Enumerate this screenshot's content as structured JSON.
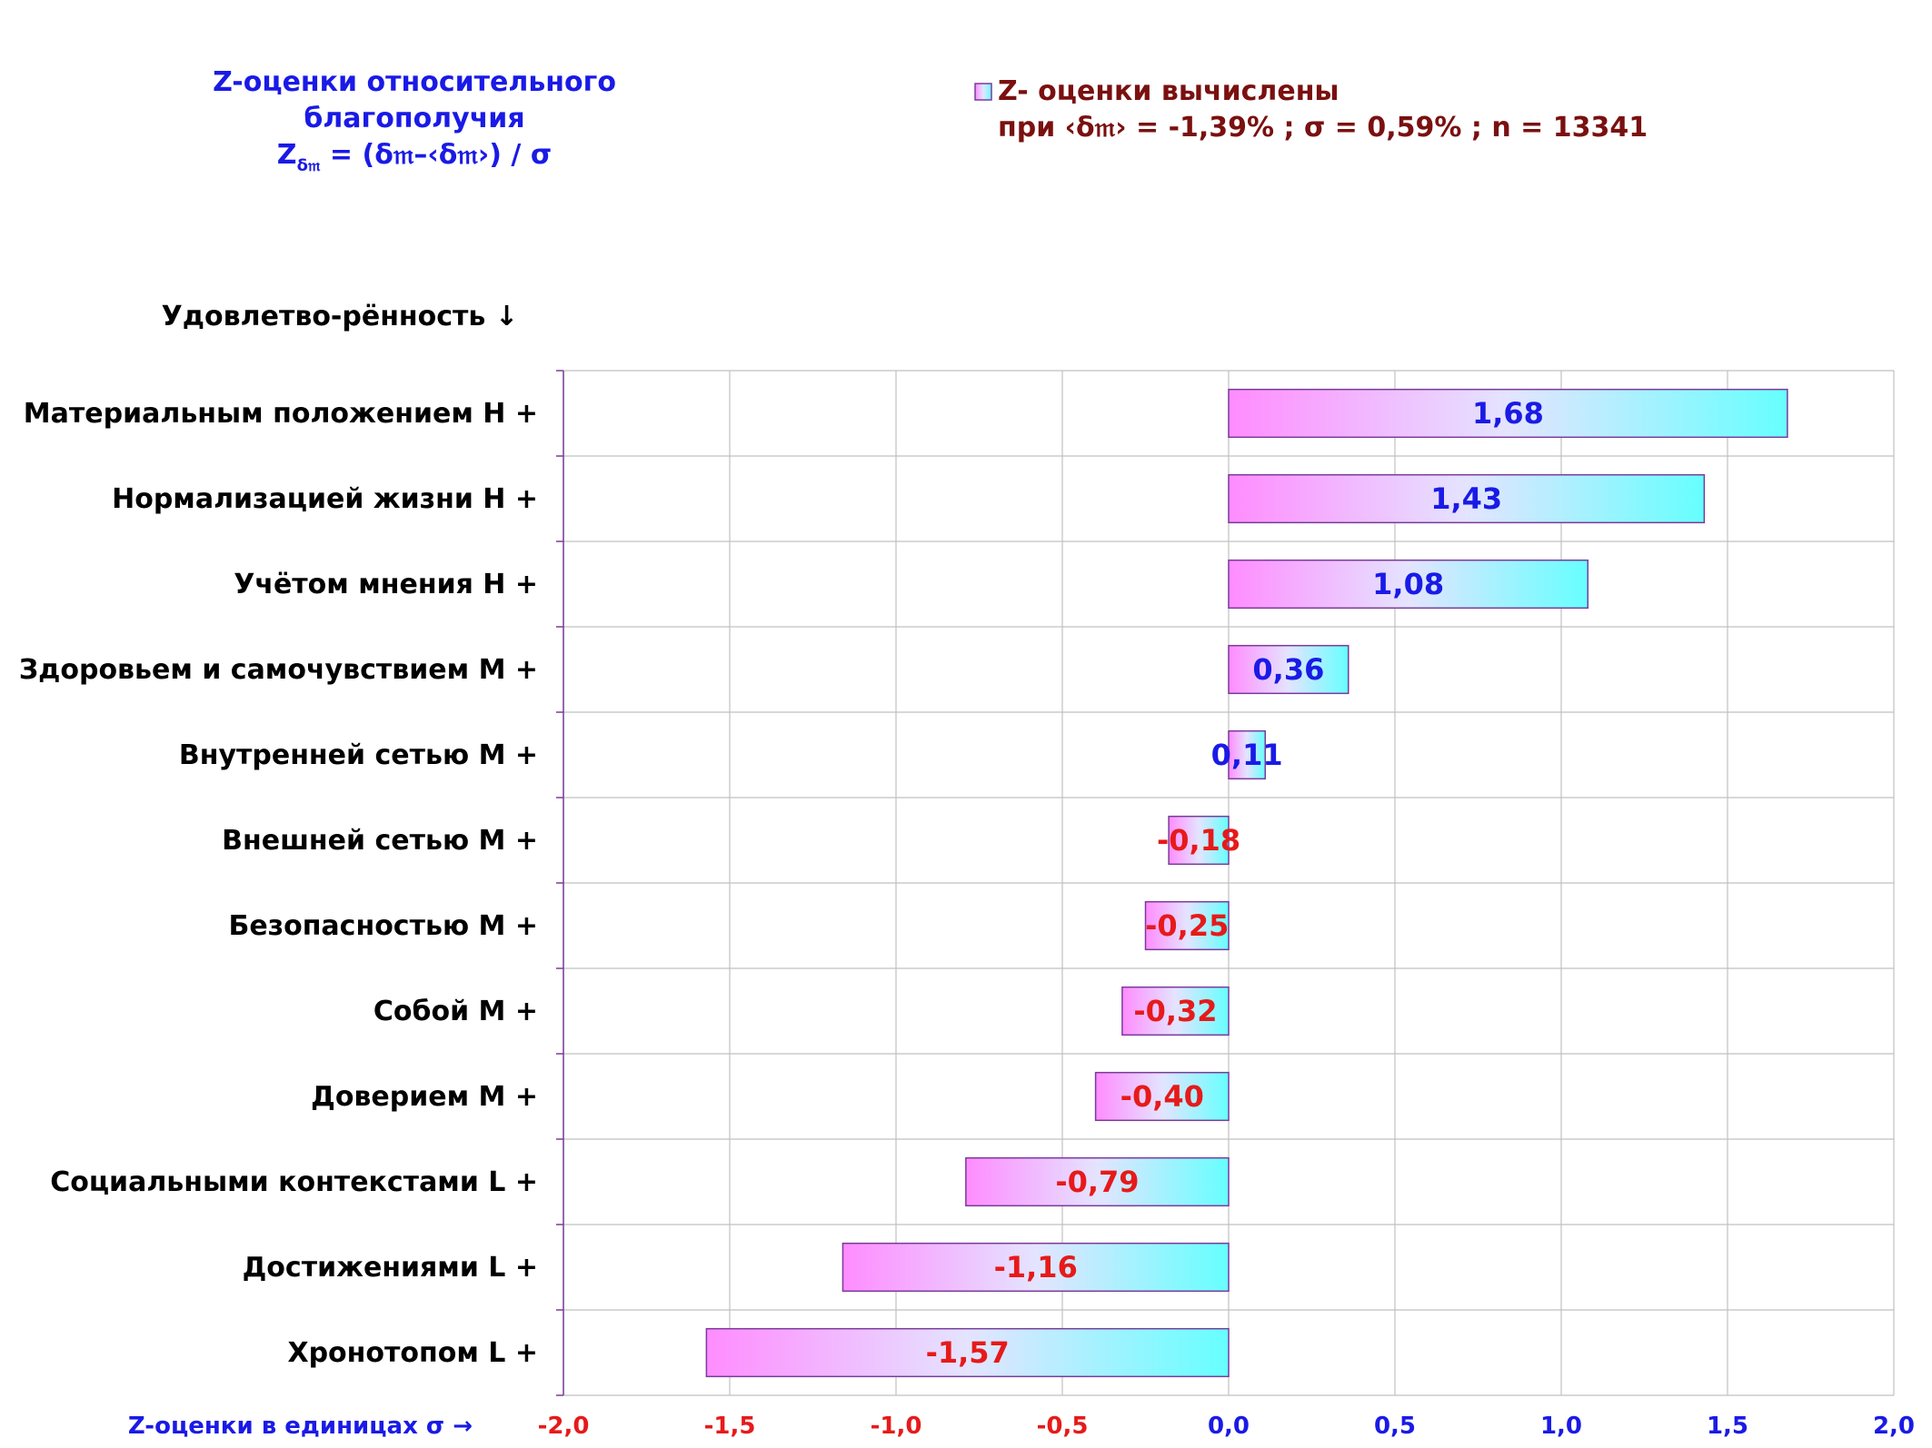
{
  "title": {
    "line1": "Z-оценки  относительного",
    "line2": "благополучия",
    "formula_lhs": "Z",
    "formula_sub": "δ𝔪",
    "formula_rhs": " = (δ𝔪–‹δ𝔪›)  / σ"
  },
  "legend": {
    "label": "Z- оценки вычислены",
    "note": "при ‹δ𝔪› = -1,39% ; σ = 0,59% ; n = 13341"
  },
  "chart_data": {
    "type": "bar",
    "orientation": "horizontal",
    "y_header": "Удовлетво-рённость ↓",
    "xlabel": "Z-оценки в единицах σ →",
    "xlim": [
      -2.0,
      2.0
    ],
    "xticks": [
      -2.0,
      -1.5,
      -1.0,
      -0.5,
      0.0,
      0.5,
      1.0,
      1.5,
      2.0
    ],
    "xtick_labels": [
      "-2,0",
      "-1,5",
      "-1,0",
      "-0,5",
      "0,0",
      "0,5",
      "1,0",
      "1,5",
      "2,0"
    ],
    "grid": true,
    "categories": [
      "Материальным положением  H +",
      "Нормализацией жизни  H +",
      "Учётом мнения  H +",
      "Здоровьем и самочувствием  M +",
      "Внутренней сетью  M +",
      "Внешней сетью  M +",
      "Безопасностью  M +",
      "Собой  M +",
      "Доверием  M +",
      "Социальными контекстами  L +",
      "Достижениями  L +",
      "Хронотопом  L +"
    ],
    "values": [
      1.68,
      1.43,
      1.08,
      0.36,
      0.11,
      -0.18,
      -0.25,
      -0.32,
      -0.4,
      -0.79,
      -1.16,
      -1.57
    ],
    "value_labels": [
      "1,68",
      "1,43",
      "1,08",
      "0,36",
      "0,11",
      "-0,18",
      "-0,25",
      "-0,32",
      "-0,40",
      "-0,79",
      "-1,16",
      "-1,57"
    ],
    "colors": {
      "positive_text": "#1a1ae6",
      "negative_text": "#e61a1a",
      "gradient_start": "#ff8cff",
      "gradient_mid": "#e4e4ff",
      "gradient_end": "#66ffff",
      "bar_border": "#7a3b9a",
      "grid": "#c0c0c0",
      "axis": "#7a3b9a"
    }
  }
}
